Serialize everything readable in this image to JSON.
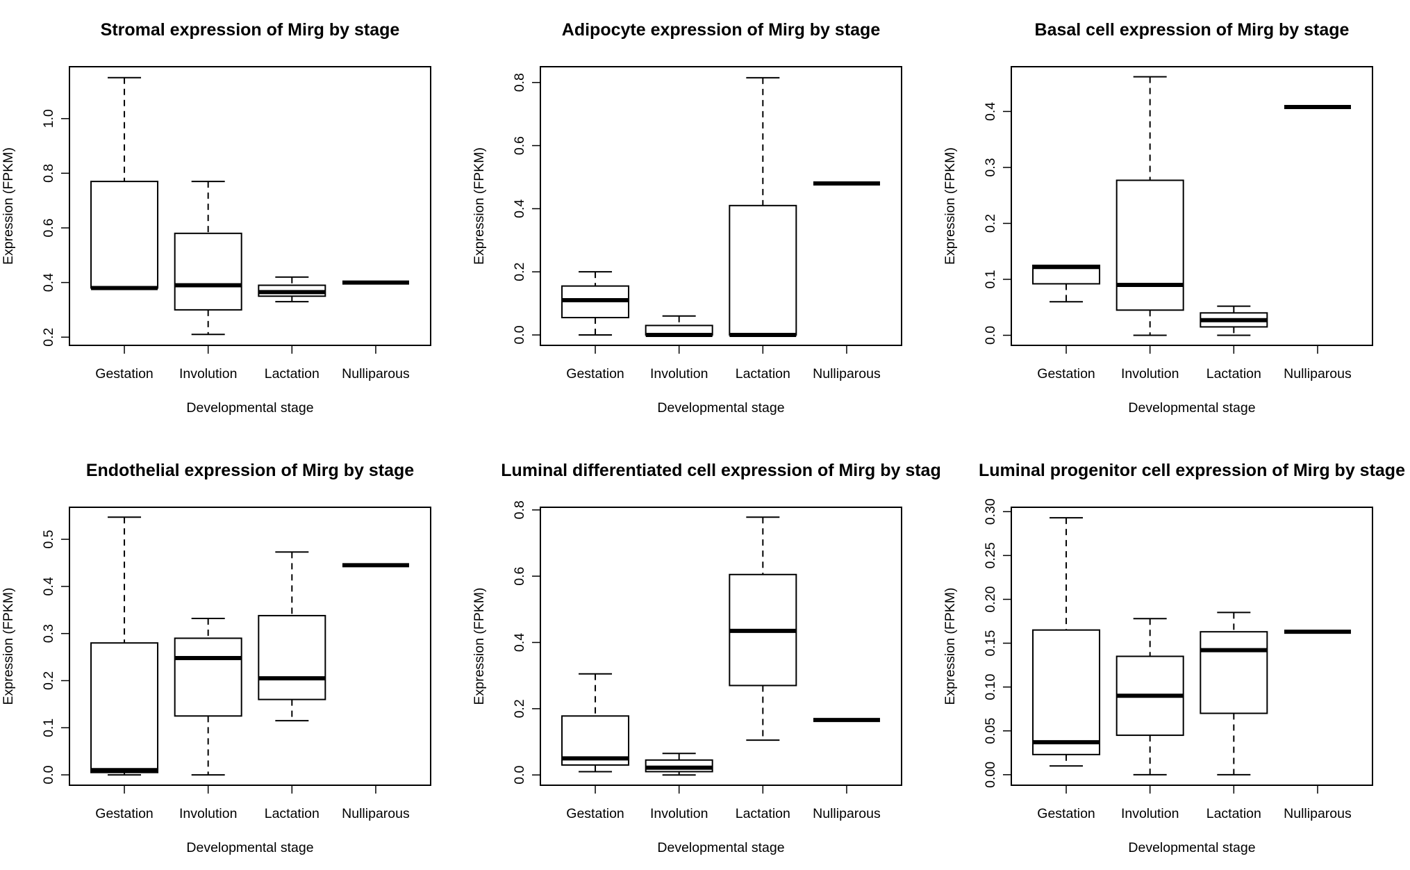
{
  "chart_data": [
    {
      "type": "boxplot",
      "title": "Stromal expression of Mirg by stage",
      "xlabel": "Developmental stage",
      "ylabel": "Expression (FPKM)",
      "categories": [
        "Gestation",
        "Involution",
        "Lactation",
        "Nulliparous"
      ],
      "ylim": [
        0.17,
        1.19
      ],
      "yticks": [
        "0.2",
        "0.4",
        "0.6",
        "0.8",
        "1.0"
      ],
      "boxes": [
        {
          "min": 0.38,
          "q1": 0.38,
          "median": 0.38,
          "q3": 0.77,
          "max": 1.15
        },
        {
          "min": 0.21,
          "q1": 0.3,
          "median": 0.39,
          "q3": 0.58,
          "max": 0.77
        },
        {
          "min": 0.33,
          "q1": 0.35,
          "median": 0.365,
          "q3": 0.39,
          "max": 0.42
        },
        {
          "min": 0.4,
          "q1": 0.4,
          "median": 0.4,
          "q3": 0.4,
          "max": 0.4
        }
      ]
    },
    {
      "type": "boxplot",
      "title": "Adipocyte expression of Mirg by stage",
      "xlabel": "Developmental stage",
      "ylabel": "Expression (FPKM)",
      "categories": [
        "Gestation",
        "Involution",
        "Lactation",
        "Nulliparous"
      ],
      "ylim": [
        -0.033,
        0.85
      ],
      "yticks": [
        "0.0",
        "0.2",
        "0.4",
        "0.6",
        "0.8"
      ],
      "boxes": [
        {
          "min": 0.0,
          "q1": 0.055,
          "median": 0.11,
          "q3": 0.155,
          "max": 0.2
        },
        {
          "min": 0.0,
          "q1": 0.0,
          "median": 0.0,
          "q3": 0.03,
          "max": 0.06
        },
        {
          "min": 0.0,
          "q1": 0.0,
          "median": 0.0,
          "q3": 0.41,
          "max": 0.815
        },
        {
          "min": 0.48,
          "q1": 0.48,
          "median": 0.48,
          "q3": 0.48,
          "max": 0.48
        }
      ]
    },
    {
      "type": "boxplot",
      "title": "Basal cell expression of Mirg by stage",
      "xlabel": "Developmental stage",
      "ylabel": "Expression (FPKM)",
      "categories": [
        "Gestation",
        "Involution",
        "Lactation",
        "Nulliparous"
      ],
      "ylim": [
        -0.018,
        0.48
      ],
      "yticks": [
        "0.0",
        "0.1",
        "0.2",
        "0.3",
        "0.4"
      ],
      "boxes": [
        {
          "min": 0.06,
          "q1": 0.092,
          "median": 0.122,
          "q3": 0.125,
          "max": 0.125
        },
        {
          "min": 0.0,
          "q1": 0.045,
          "median": 0.09,
          "q3": 0.277,
          "max": 0.462
        },
        {
          "min": 0.0,
          "q1": 0.015,
          "median": 0.027,
          "q3": 0.04,
          "max": 0.052
        },
        {
          "min": 0.408,
          "q1": 0.408,
          "median": 0.408,
          "q3": 0.408,
          "max": 0.408
        }
      ]
    },
    {
      "type": "boxplot",
      "title": "Endothelial expression of Mirg by stage",
      "xlabel": "Developmental stage",
      "ylabel": "Expression (FPKM)",
      "categories": [
        "Gestation",
        "Involution",
        "Lactation",
        "Nulliparous"
      ],
      "ylim": [
        -0.022,
        0.568
      ],
      "yticks": [
        "0.0",
        "0.1",
        "0.2",
        "0.3",
        "0.4",
        "0.5"
      ],
      "boxes": [
        {
          "min": 0.0,
          "q1": 0.005,
          "median": 0.01,
          "q3": 0.28,
          "max": 0.547
        },
        {
          "min": 0.0,
          "q1": 0.125,
          "median": 0.248,
          "q3": 0.29,
          "max": 0.332
        },
        {
          "min": 0.115,
          "q1": 0.16,
          "median": 0.205,
          "q3": 0.338,
          "max": 0.473
        },
        {
          "min": 0.445,
          "q1": 0.445,
          "median": 0.445,
          "q3": 0.445,
          "max": 0.445
        }
      ]
    },
    {
      "type": "boxplot",
      "title": "Luminal differentiated cell expression of Mirg by stag",
      "xlabel": "Developmental stage",
      "ylabel": "Expression (FPKM)",
      "categories": [
        "Gestation",
        "Involution",
        "Lactation",
        "Nulliparous"
      ],
      "ylim": [
        -0.031,
        0.808
      ],
      "yticks": [
        "0.0",
        "0.2",
        "0.4",
        "0.6",
        "0.8"
      ],
      "boxes": [
        {
          "min": 0.01,
          "q1": 0.03,
          "median": 0.05,
          "q3": 0.178,
          "max": 0.305
        },
        {
          "min": 0.0,
          "q1": 0.01,
          "median": 0.022,
          "q3": 0.045,
          "max": 0.065
        },
        {
          "min": 0.105,
          "q1": 0.27,
          "median": 0.435,
          "q3": 0.605,
          "max": 0.778
        },
        {
          "min": 0.166,
          "q1": 0.166,
          "median": 0.166,
          "q3": 0.166,
          "max": 0.166
        }
      ]
    },
    {
      "type": "boxplot",
      "title": "Luminal progenitor cell expression of Mirg by stage",
      "xlabel": "Developmental stage",
      "ylabel": "Expression (FPKM)",
      "categories": [
        "Gestation",
        "Involution",
        "Lactation",
        "Nulliparous"
      ],
      "ylim": [
        -0.012,
        0.305
      ],
      "yticks": [
        "0.00",
        "0.05",
        "0.10",
        "0.15",
        "0.20",
        "0.25",
        "0.30"
      ],
      "boxes": [
        {
          "min": 0.01,
          "q1": 0.023,
          "median": 0.037,
          "q3": 0.165,
          "max": 0.293
        },
        {
          "min": 0.0,
          "q1": 0.045,
          "median": 0.09,
          "q3": 0.135,
          "max": 0.178
        },
        {
          "min": 0.0,
          "q1": 0.07,
          "median": 0.142,
          "q3": 0.163,
          "max": 0.185
        },
        {
          "min": 0.163,
          "q1": 0.163,
          "median": 0.163,
          "q3": 0.163,
          "max": 0.163
        }
      ]
    }
  ]
}
